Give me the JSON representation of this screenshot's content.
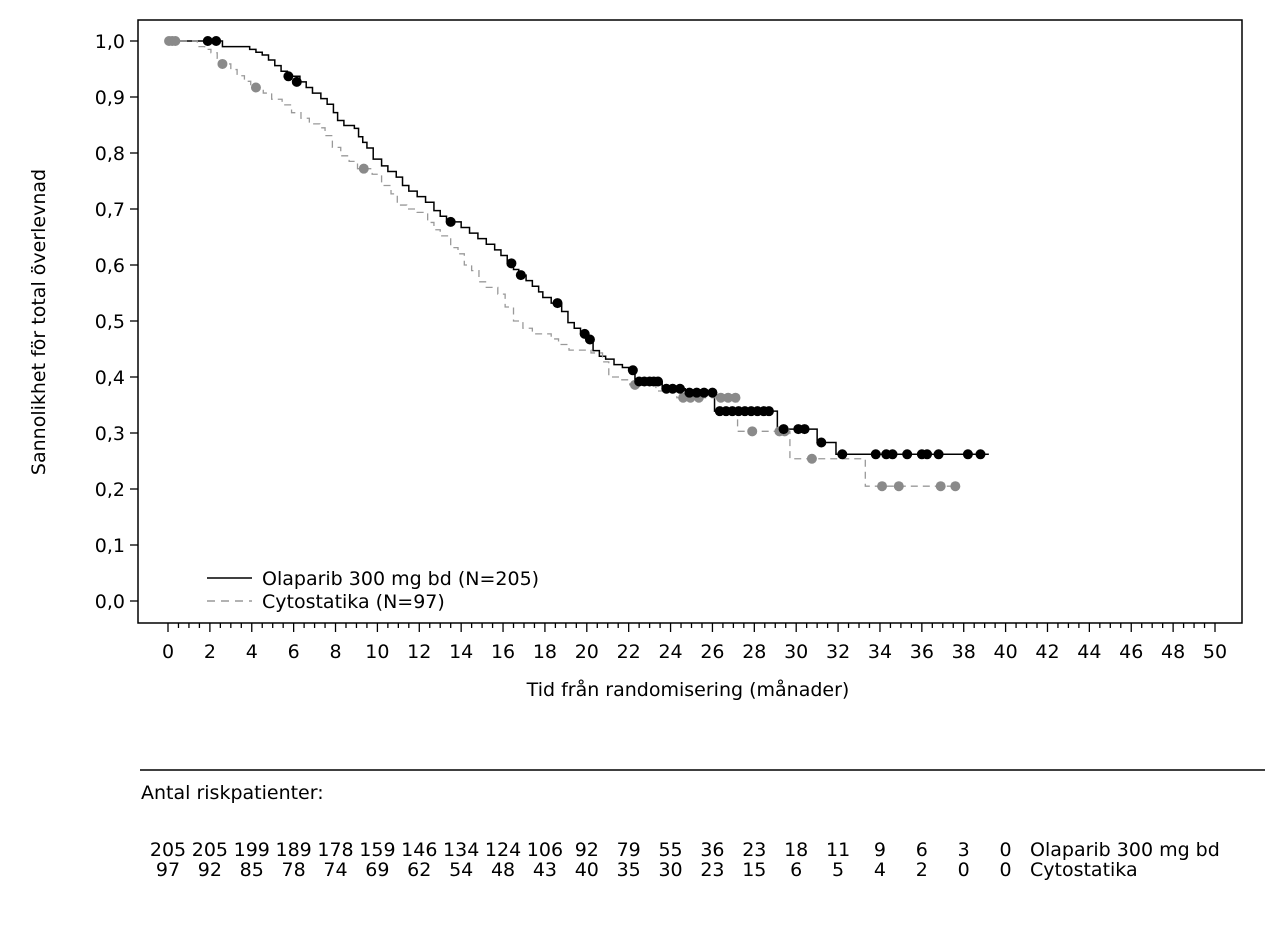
{
  "chart_data": {
    "type": "line",
    "subtype": "kaplan-meier-step",
    "title": "",
    "xlabel": "Tid från randomisering (månader)",
    "ylabel": "Sannolikhet för total överlevnad",
    "xlim": [
      0,
      50
    ],
    "ylim": [
      0.0,
      1.0
    ],
    "grid": false,
    "x_major_ticks": [
      0,
      2,
      4,
      6,
      8,
      10,
      12,
      14,
      16,
      18,
      20,
      22,
      24,
      26,
      28,
      30,
      32,
      34,
      36,
      38,
      40,
      42,
      44,
      46,
      48,
      50
    ],
    "x_minor_tick_interval": 0.5,
    "y_tick_values": [
      1.0,
      0.9,
      0.8,
      0.7,
      0.6,
      0.5,
      0.4,
      0.3,
      0.2,
      0.1,
      0.0
    ],
    "y_tick_labels": [
      "1,0",
      "0,9",
      "0,8",
      "0,7",
      "0,6",
      "0,5",
      "0,4",
      "0,3",
      "0,2",
      "0,1",
      "0,0"
    ],
    "legend_position": "inside-bottom-left",
    "series": [
      {
        "name": "Olaparib 300 mg bd (N=205)",
        "color": "#000000",
        "line_style": "solid",
        "marker": "censor-dot",
        "end_x": 39.2,
        "steps": [
          [
            0,
            1.0
          ],
          [
            2.6,
            0.99
          ],
          [
            3.9,
            0.985
          ],
          [
            4.2,
            0.98
          ],
          [
            4.5,
            0.975
          ],
          [
            4.8,
            0.966
          ],
          [
            5.1,
            0.956
          ],
          [
            5.4,
            0.946
          ],
          [
            5.7,
            0.937
          ],
          [
            6.3,
            0.927
          ],
          [
            6.6,
            0.917
          ],
          [
            6.9,
            0.907
          ],
          [
            7.3,
            0.897
          ],
          [
            7.6,
            0.887
          ],
          [
            7.9,
            0.872
          ],
          [
            8.1,
            0.858
          ],
          [
            8.4,
            0.849
          ],
          [
            8.9,
            0.844
          ],
          [
            9.1,
            0.829
          ],
          [
            9.3,
            0.819
          ],
          [
            9.5,
            0.809
          ],
          [
            9.8,
            0.789
          ],
          [
            10.2,
            0.777
          ],
          [
            10.5,
            0.767
          ],
          [
            10.9,
            0.757
          ],
          [
            11.2,
            0.742
          ],
          [
            11.5,
            0.732
          ],
          [
            11.9,
            0.722
          ],
          [
            12.3,
            0.712
          ],
          [
            12.7,
            0.697
          ],
          [
            13.0,
            0.687
          ],
          [
            13.3,
            0.677
          ],
          [
            14.0,
            0.667
          ],
          [
            14.4,
            0.657
          ],
          [
            14.8,
            0.647
          ],
          [
            15.2,
            0.637
          ],
          [
            15.6,
            0.627
          ],
          [
            15.9,
            0.617
          ],
          [
            16.2,
            0.603
          ],
          [
            16.5,
            0.592
          ],
          [
            16.75,
            0.582
          ],
          [
            17.1,
            0.572
          ],
          [
            17.4,
            0.562
          ],
          [
            17.7,
            0.552
          ],
          [
            17.9,
            0.542
          ],
          [
            18.3,
            0.532
          ],
          [
            18.8,
            0.517
          ],
          [
            19.1,
            0.497
          ],
          [
            19.4,
            0.487
          ],
          [
            19.7,
            0.477
          ],
          [
            20.05,
            0.467
          ],
          [
            20.3,
            0.447
          ],
          [
            20.6,
            0.437
          ],
          [
            20.9,
            0.432
          ],
          [
            21.3,
            0.422
          ],
          [
            21.7,
            0.417
          ],
          [
            22.0,
            0.412
          ],
          [
            22.3,
            0.392
          ],
          [
            23.6,
            0.379
          ],
          [
            24.7,
            0.372
          ],
          [
            26.1,
            0.339
          ],
          [
            29.1,
            0.307
          ],
          [
            31.0,
            0.283
          ],
          [
            31.9,
            0.262
          ]
        ],
        "censor_marks": [
          [
            1.9,
            1.0
          ],
          [
            2.3,
            1.0
          ],
          [
            5.75,
            0.937
          ],
          [
            6.15,
            0.927
          ],
          [
            13.5,
            0.677
          ],
          [
            16.4,
            0.603
          ],
          [
            16.85,
            0.582
          ],
          [
            18.6,
            0.532
          ],
          [
            19.9,
            0.477
          ],
          [
            20.15,
            0.467
          ],
          [
            22.2,
            0.412
          ],
          [
            22.5,
            0.392
          ],
          [
            22.75,
            0.392
          ],
          [
            23.0,
            0.392
          ],
          [
            23.2,
            0.392
          ],
          [
            23.4,
            0.392
          ],
          [
            23.8,
            0.379
          ],
          [
            24.1,
            0.379
          ],
          [
            24.45,
            0.379
          ],
          [
            24.9,
            0.372
          ],
          [
            25.25,
            0.372
          ],
          [
            25.6,
            0.372
          ],
          [
            26.0,
            0.372
          ],
          [
            26.35,
            0.339
          ],
          [
            26.65,
            0.339
          ],
          [
            26.95,
            0.339
          ],
          [
            27.25,
            0.339
          ],
          [
            27.55,
            0.339
          ],
          [
            27.85,
            0.339
          ],
          [
            28.15,
            0.339
          ],
          [
            28.45,
            0.339
          ],
          [
            28.7,
            0.339
          ],
          [
            29.4,
            0.307
          ],
          [
            30.1,
            0.307
          ],
          [
            30.4,
            0.307
          ],
          [
            31.2,
            0.283
          ],
          [
            32.2,
            0.262
          ],
          [
            33.8,
            0.262
          ],
          [
            34.3,
            0.262
          ],
          [
            34.6,
            0.262
          ],
          [
            35.3,
            0.262
          ],
          [
            36.0,
            0.262
          ],
          [
            36.25,
            0.262
          ],
          [
            36.8,
            0.262
          ],
          [
            38.2,
            0.262
          ],
          [
            38.8,
            0.262
          ]
        ]
      },
      {
        "name": "Cytostatika (N=97)",
        "color": "#999999",
        "line_style": "dashed",
        "marker": "censor-dot",
        "marker_color": "#8a8a8a",
        "end_x": 37.8,
        "steps": [
          [
            0,
            1.0
          ],
          [
            1.4,
            0.99
          ],
          [
            1.75,
            0.985
          ],
          [
            2.05,
            0.979
          ],
          [
            2.35,
            0.969
          ],
          [
            2.5,
            0.959
          ],
          [
            3.0,
            0.949
          ],
          [
            3.3,
            0.938
          ],
          [
            3.65,
            0.928
          ],
          [
            3.95,
            0.917
          ],
          [
            4.55,
            0.907
          ],
          [
            4.95,
            0.896
          ],
          [
            5.45,
            0.886
          ],
          [
            5.9,
            0.872
          ],
          [
            6.35,
            0.862
          ],
          [
            6.75,
            0.852
          ],
          [
            7.25,
            0.845
          ],
          [
            7.5,
            0.831
          ],
          [
            7.85,
            0.81
          ],
          [
            8.25,
            0.795
          ],
          [
            8.65,
            0.785
          ],
          [
            9.05,
            0.772
          ],
          [
            9.75,
            0.762
          ],
          [
            10.2,
            0.742
          ],
          [
            10.65,
            0.727
          ],
          [
            10.95,
            0.707
          ],
          [
            11.4,
            0.7
          ],
          [
            11.9,
            0.694
          ],
          [
            12.4,
            0.676
          ],
          [
            12.7,
            0.663
          ],
          [
            13.0,
            0.652
          ],
          [
            13.5,
            0.631
          ],
          [
            13.85,
            0.62
          ],
          [
            14.15,
            0.6
          ],
          [
            14.5,
            0.59
          ],
          [
            14.85,
            0.57
          ],
          [
            15.2,
            0.56
          ],
          [
            15.75,
            0.548
          ],
          [
            16.1,
            0.525
          ],
          [
            16.5,
            0.5
          ],
          [
            16.95,
            0.487
          ],
          [
            17.4,
            0.477
          ],
          [
            18.3,
            0.468
          ],
          [
            18.65,
            0.458
          ],
          [
            19.15,
            0.448
          ],
          [
            20.2,
            0.443
          ],
          [
            20.75,
            0.427
          ],
          [
            21.05,
            0.4
          ],
          [
            21.6,
            0.395
          ],
          [
            22.05,
            0.386
          ],
          [
            23.3,
            0.375
          ],
          [
            24.3,
            0.363
          ],
          [
            27.2,
            0.303
          ],
          [
            29.7,
            0.254
          ],
          [
            33.3,
            0.205
          ]
        ],
        "censor_marks": [
          [
            0.05,
            1.0
          ],
          [
            0.2,
            1.0
          ],
          [
            0.35,
            1.0
          ],
          [
            2.6,
            0.959
          ],
          [
            4.2,
            0.917
          ],
          [
            9.35,
            0.772
          ],
          [
            22.3,
            0.386
          ],
          [
            24.6,
            0.363
          ],
          [
            24.95,
            0.363
          ],
          [
            25.35,
            0.363
          ],
          [
            26.4,
            0.363
          ],
          [
            26.75,
            0.363
          ],
          [
            27.1,
            0.363
          ],
          [
            27.9,
            0.303
          ],
          [
            29.2,
            0.303
          ],
          [
            29.45,
            0.303
          ],
          [
            30.75,
            0.254
          ],
          [
            34.1,
            0.205
          ],
          [
            34.9,
            0.205
          ],
          [
            36.9,
            0.205
          ],
          [
            37.6,
            0.205
          ]
        ]
      }
    ]
  },
  "risk_table": {
    "heading": "Antal riskpatienter:",
    "time_points": [
      0,
      2,
      4,
      6,
      8,
      10,
      12,
      14,
      16,
      18,
      20,
      22,
      24,
      26,
      28,
      30,
      32,
      34,
      36,
      38,
      40
    ],
    "rows": [
      {
        "label": "Olaparib 300 mg bd",
        "counts": [
          205,
          205,
          199,
          189,
          178,
          159,
          146,
          134,
          124,
          106,
          92,
          79,
          55,
          36,
          23,
          18,
          11,
          9,
          6,
          3,
          0
        ]
      },
      {
        "label": "Cytostatika",
        "counts": [
          97,
          92,
          85,
          78,
          74,
          69,
          62,
          54,
          48,
          43,
          40,
          35,
          30,
          23,
          15,
          6,
          5,
          4,
          2,
          0,
          0
        ]
      }
    ]
  },
  "colors": {
    "background": "#ffffff",
    "axis": "#000000",
    "olaparib_line": "#000000",
    "cytostatika_line": "#999999",
    "cytostatika_censor": "#8a8a8a"
  }
}
